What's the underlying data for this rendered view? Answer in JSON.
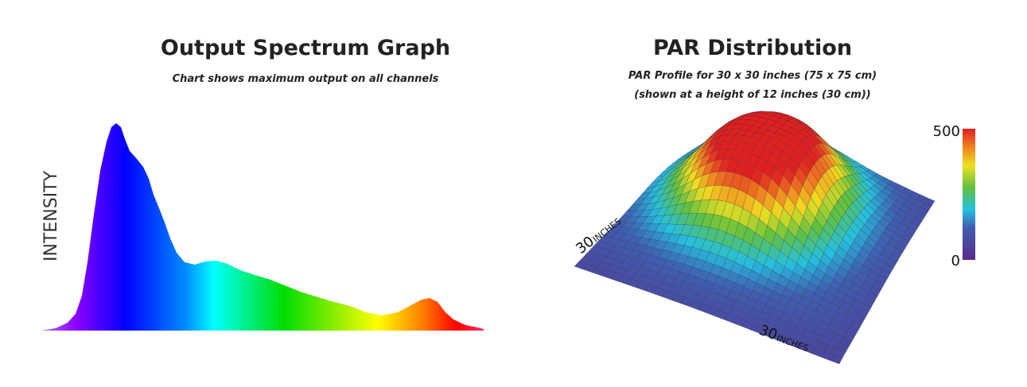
{
  "spectrum": {
    "title": "Output Spectrum Graph",
    "subtitle": "Chart shows maximum output on all channels",
    "y_label": "INTENSITY"
  },
  "par": {
    "title": "PAR Distribution",
    "subtitle_lines": [
      "PAR Profile for 30 x 30 inches (75 x 75 cm)",
      "(shown at a height of 12 inches (30 cm))"
    ],
    "colorbar": {
      "max": 500,
      "min": 0
    },
    "axis_labels": [
      {
        "number": 30,
        "unit": "INCHES"
      },
      {
        "number": 30,
        "unit": "INCHES"
      }
    ]
  }
}
